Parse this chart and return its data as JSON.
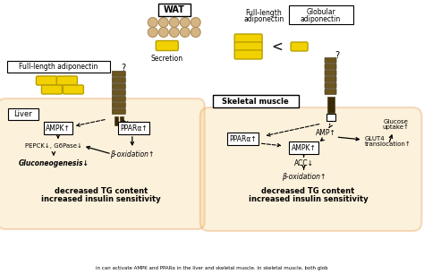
{
  "bg_color": "#ffffff",
  "fig_width": 4.74,
  "fig_height": 3.06,
  "dpi": 100,
  "wat_label": "WAT",
  "secretion_label": "Secretion",
  "full_length_label1": "Full-length",
  "adiponectin_label1": "adiponectin",
  "globular_label1": "Globular",
  "adiponectin_label2": "adiponectin",
  "liver_label": "Liver",
  "full_length_adipo_box": "Full-length adiponectin",
  "skeletal_muscle_label": "Skeletal muscle",
  "liver_ampk": "AMPK↑",
  "liver_ppara": "PPARα↑",
  "liver_pepck": "PEPCK↓, G6Pase↓",
  "liver_beta_ox": "β-oxidation↑",
  "liver_gluconeo": "Gluconeogenesis↓",
  "liver_decreased": "decreased TG content",
  "liver_increased": "increased insulin sensitivity",
  "sk_ppara": "PPARα↑",
  "sk_amp": "AMP↑",
  "sk_ampk": "AMPK↑",
  "sk_acc": "ACC↓",
  "sk_beta_ox": "β-oxidation↑",
  "sk_glut4": "GLUT4",
  "sk_glut4_trans": "translocation↑",
  "sk_glucose": "Glucose",
  "sk_uptake": "uptake↑",
  "sk_decreased": "decreased TG content",
  "sk_increased": "increased insulin sensitivity",
  "question_mark": "?",
  "caption": "in can activate AMPK and PPARα in the liver and skeletal muscle. In skeletal muscle, both glob",
  "yellow": "#F2D100",
  "yellow_dark": "#B8A000",
  "tan": "#D4B483",
  "orange_outline": "#E07820",
  "dark_olive": "#504020",
  "receptor_body": "#6B5520",
  "receptor_dark": "#3A2A08",
  "cell_fill": "#F5C870",
  "cell_alpha": 0.25,
  "box_fill": "#ffffff",
  "box_edge": "#000000"
}
